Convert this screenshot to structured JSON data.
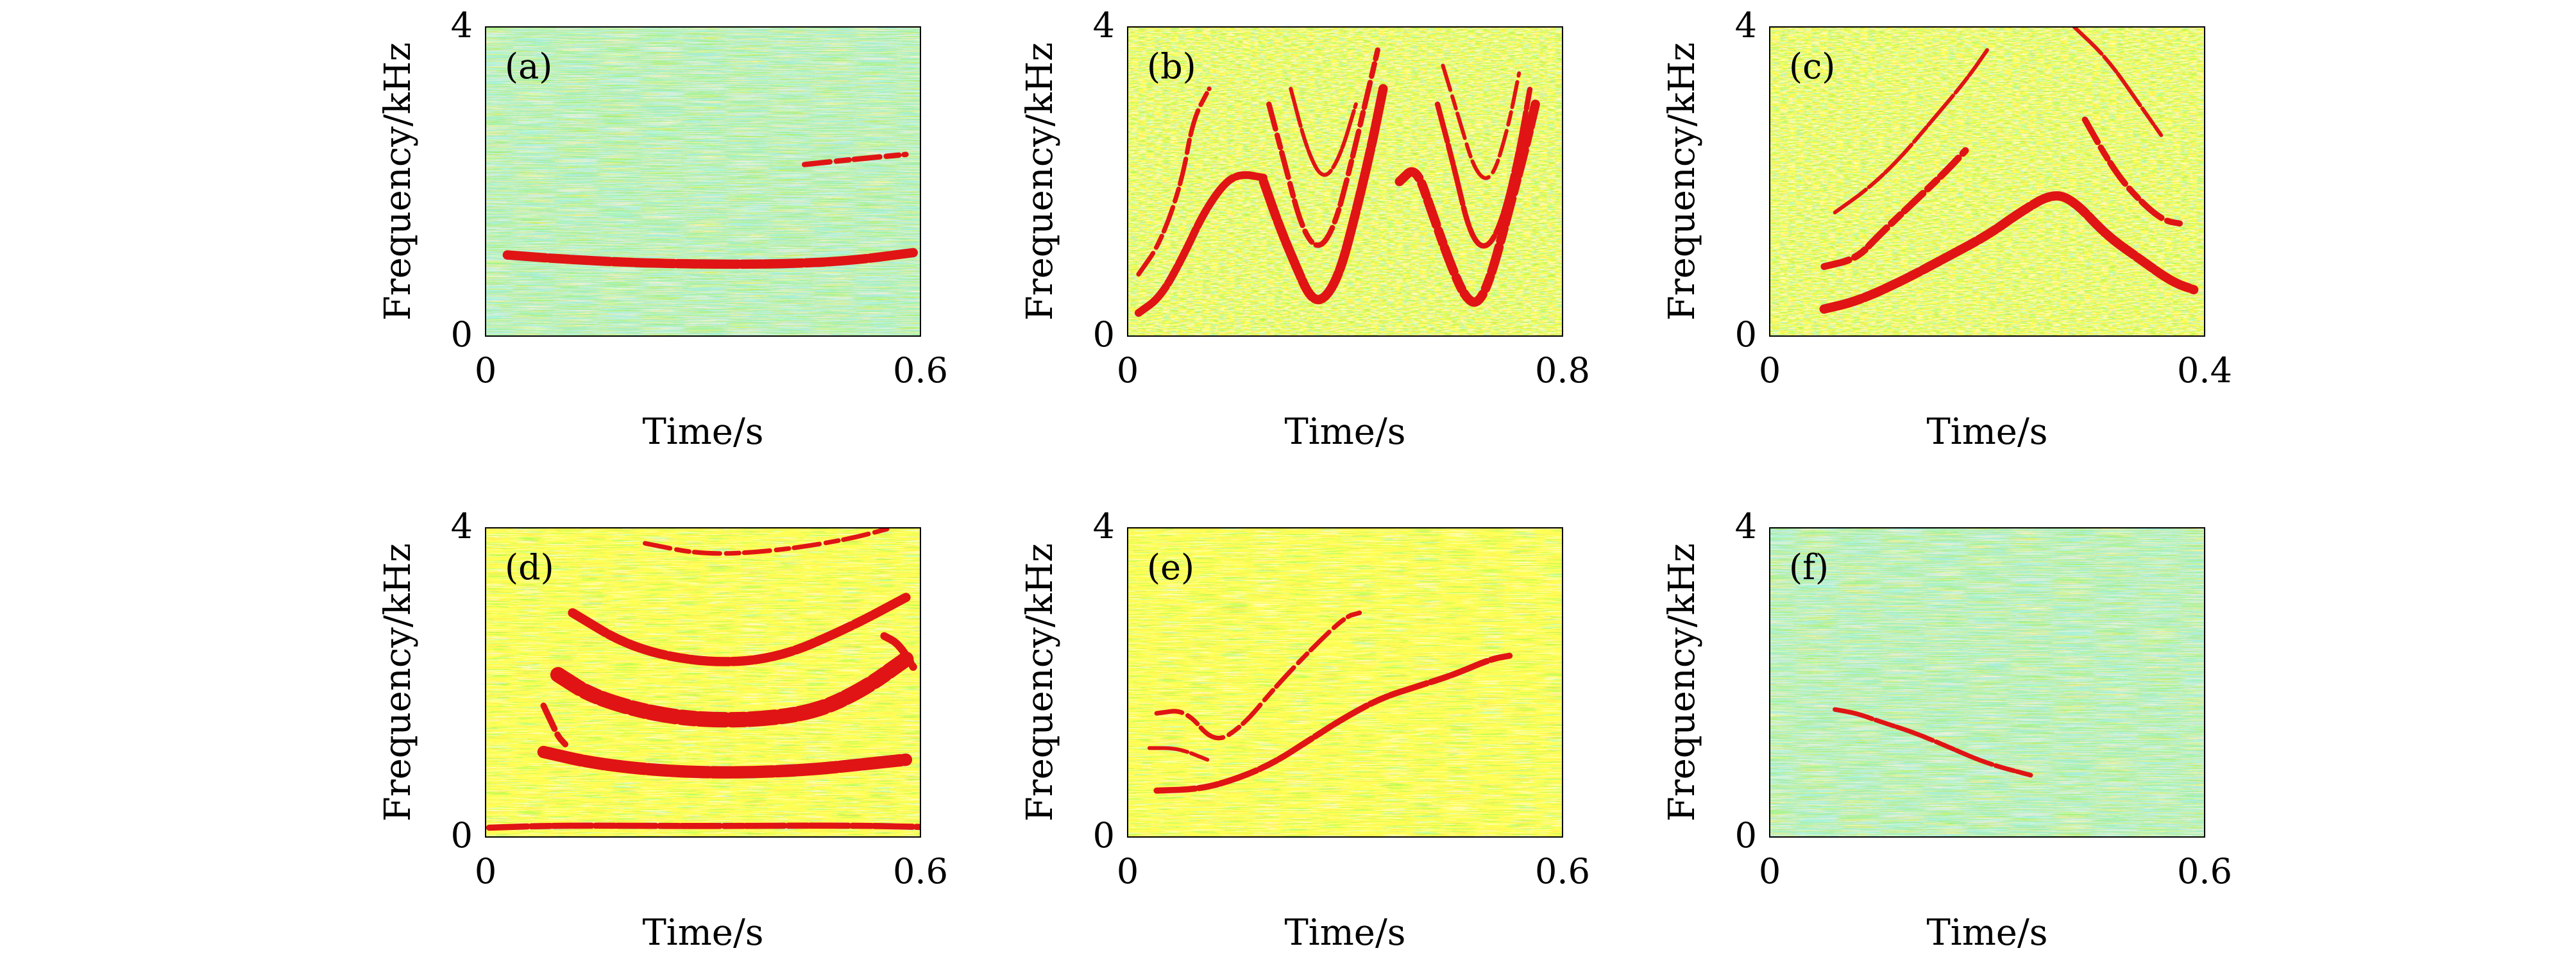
{
  "colors": {
    "background": "#ffff3c",
    "noise_cyan": "#5fd6cf",
    "noise_green": "#9fe36a",
    "noise_yellow": "#ffff00",
    "ridge": "#e01414",
    "frame": "#000000"
  },
  "chart_data": [
    {
      "id": "a",
      "type": "heatmap",
      "panel_label": "(a)",
      "xlabel": "Time/s",
      "ylabel": "Frequency/kHz",
      "xlim": [
        0,
        0.6
      ],
      "ylim": [
        0,
        4
      ],
      "x_ticks": [
        "0",
        "0.6"
      ],
      "y_ticks": [
        "0",
        "4"
      ],
      "ridges": [
        {
          "points": [
            [
              0.03,
              1.05
            ],
            [
              0.1,
              1.0
            ],
            [
              0.2,
              0.95
            ],
            [
              0.3,
              0.93
            ],
            [
              0.4,
              0.93
            ],
            [
              0.5,
              0.97
            ],
            [
              0.59,
              1.08
            ]
          ],
          "width": 0.12
        },
        {
          "points": [
            [
              0.44,
              2.22
            ],
            [
              0.5,
              2.28
            ],
            [
              0.58,
              2.35
            ]
          ],
          "width": 0.07
        }
      ]
    },
    {
      "id": "b",
      "type": "heatmap",
      "panel_label": "(b)",
      "xlabel": "Time/s",
      "ylabel": "Frequency/kHz",
      "xlim": [
        0,
        0.8
      ],
      "ylim": [
        0,
        4
      ],
      "x_ticks": [
        "0",
        "0.8"
      ],
      "y_ticks": [
        "0",
        "4"
      ],
      "ridges": [
        {
          "points": [
            [
              0.02,
              0.3
            ],
            [
              0.06,
              0.5
            ],
            [
              0.1,
              1.0
            ],
            [
              0.14,
              1.6
            ],
            [
              0.18,
              2.0
            ],
            [
              0.21,
              2.1
            ],
            [
              0.25,
              2.05
            ]
          ],
          "width": 0.1
        },
        {
          "points": [
            [
              0.02,
              0.8
            ],
            [
              0.06,
              1.2
            ],
            [
              0.1,
              2.0
            ],
            [
              0.12,
              2.8
            ],
            [
              0.15,
              3.2
            ]
          ],
          "width": 0.06
        },
        {
          "points": [
            [
              0.25,
              2.0
            ],
            [
              0.28,
              1.4
            ],
            [
              0.31,
              0.9
            ],
            [
              0.335,
              0.5
            ],
            [
              0.36,
              0.45
            ],
            [
              0.39,
              0.8
            ],
            [
              0.42,
              1.6
            ],
            [
              0.45,
              2.5
            ],
            [
              0.47,
              3.2
            ]
          ],
          "width": 0.12
        },
        {
          "points": [
            [
              0.26,
              3.0
            ],
            [
              0.29,
              2.2
            ],
            [
              0.32,
              1.4
            ],
            [
              0.35,
              1.1
            ],
            [
              0.38,
              1.4
            ],
            [
              0.41,
              2.2
            ],
            [
              0.44,
              3.1
            ],
            [
              0.46,
              3.7
            ]
          ],
          "width": 0.07
        },
        {
          "points": [
            [
              0.3,
              3.2
            ],
            [
              0.33,
              2.4
            ],
            [
              0.36,
              2.0
            ],
            [
              0.39,
              2.3
            ],
            [
              0.42,
              3.0
            ]
          ],
          "width": 0.05
        },
        {
          "points": [
            [
              0.5,
              2.0
            ],
            [
              0.53,
              2.2
            ],
            [
              0.56,
              1.6
            ],
            [
              0.59,
              1.0
            ],
            [
              0.62,
              0.5
            ],
            [
              0.645,
              0.4
            ],
            [
              0.67,
              0.8
            ],
            [
              0.7,
              1.6
            ],
            [
              0.73,
              2.4
            ],
            [
              0.75,
              3.0
            ]
          ],
          "width": 0.12
        },
        {
          "points": [
            [
              0.57,
              3.0
            ],
            [
              0.6,
              2.2
            ],
            [
              0.63,
              1.3
            ],
            [
              0.66,
              1.1
            ],
            [
              0.69,
              1.5
            ],
            [
              0.72,
              2.4
            ],
            [
              0.74,
              3.2
            ]
          ],
          "width": 0.07
        },
        {
          "points": [
            [
              0.58,
              3.5
            ],
            [
              0.61,
              2.8
            ],
            [
              0.64,
              2.1
            ],
            [
              0.67,
              2.0
            ],
            [
              0.7,
              2.7
            ],
            [
              0.72,
              3.4
            ]
          ],
          "width": 0.05
        }
      ]
    },
    {
      "id": "c",
      "type": "heatmap",
      "panel_label": "(c)",
      "xlabel": "Time/s",
      "ylabel": "Frequency/kHz",
      "xlim": [
        0,
        0.4
      ],
      "ylim": [
        0,
        4
      ],
      "x_ticks": [
        "0",
        "0.4"
      ],
      "y_ticks": [
        "0",
        "4"
      ],
      "ridges": [
        {
          "points": [
            [
              0.05,
              0.35
            ],
            [
              0.08,
              0.45
            ],
            [
              0.12,
              0.7
            ],
            [
              0.16,
              1.0
            ],
            [
              0.2,
              1.3
            ],
            [
              0.23,
              1.6
            ],
            [
              0.26,
              1.85
            ],
            [
              0.28,
              1.75
            ],
            [
              0.31,
              1.3
            ],
            [
              0.34,
              1.0
            ],
            [
              0.37,
              0.7
            ],
            [
              0.39,
              0.6
            ]
          ],
          "width": 0.12
        },
        {
          "points": [
            [
              0.05,
              0.9
            ],
            [
              0.08,
              1.0
            ],
            [
              0.1,
              1.3
            ],
            [
              0.13,
              1.7
            ],
            [
              0.16,
              2.1
            ],
            [
              0.18,
              2.4
            ]
          ],
          "width": 0.09
        },
        {
          "points": [
            [
              0.06,
              1.6
            ],
            [
              0.09,
              1.9
            ],
            [
              0.12,
              2.3
            ],
            [
              0.15,
              2.8
            ],
            [
              0.18,
              3.3
            ],
            [
              0.2,
              3.7
            ]
          ],
          "width": 0.05
        },
        {
          "points": [
            [
              0.29,
              2.8
            ],
            [
              0.31,
              2.3
            ],
            [
              0.33,
              1.9
            ],
            [
              0.36,
              1.5
            ],
            [
              0.38,
              1.45
            ]
          ],
          "width": 0.08
        },
        {
          "points": [
            [
              0.28,
              4.0
            ],
            [
              0.31,
              3.6
            ],
            [
              0.34,
              3.0
            ],
            [
              0.36,
              2.6
            ]
          ],
          "width": 0.05
        }
      ]
    },
    {
      "id": "d",
      "type": "heatmap",
      "panel_label": "(d)",
      "xlabel": "Time/s",
      "ylabel": "Frequency/kHz",
      "xlim": [
        0,
        0.6
      ],
      "ylim": [
        0,
        4
      ],
      "x_ticks": [
        "0",
        "0.6"
      ],
      "y_ticks": [
        "0",
        "4"
      ],
      "ridges": [
        {
          "points": [
            [
              0.08,
              1.1
            ],
            [
              0.15,
              0.95
            ],
            [
              0.25,
              0.85
            ],
            [
              0.35,
              0.83
            ],
            [
              0.45,
              0.87
            ],
            [
              0.53,
              0.95
            ],
            [
              0.58,
              1.0
            ]
          ],
          "width": 0.16
        },
        {
          "points": [
            [
              0.1,
              2.1
            ],
            [
              0.15,
              1.8
            ],
            [
              0.25,
              1.55
            ],
            [
              0.35,
              1.5
            ],
            [
              0.45,
              1.6
            ],
            [
              0.52,
              1.9
            ],
            [
              0.58,
              2.3
            ]
          ],
          "width": 0.2
        },
        {
          "points": [
            [
              0.12,
              2.9
            ],
            [
              0.2,
              2.45
            ],
            [
              0.3,
              2.25
            ],
            [
              0.4,
              2.3
            ],
            [
              0.5,
              2.7
            ],
            [
              0.58,
              3.1
            ]
          ],
          "width": 0.12
        },
        {
          "points": [
            [
              0.22,
              3.8
            ],
            [
              0.3,
              3.65
            ],
            [
              0.4,
              3.7
            ],
            [
              0.5,
              3.85
            ],
            [
              0.56,
              4.0
            ]
          ],
          "width": 0.06
        },
        {
          "points": [
            [
              0.005,
              0.12
            ],
            [
              0.1,
              0.15
            ],
            [
              0.3,
              0.14
            ],
            [
              0.5,
              0.15
            ],
            [
              0.6,
              0.13
            ]
          ],
          "width": 0.08
        },
        {
          "points": [
            [
              0.08,
              1.7
            ],
            [
              0.09,
              1.5
            ],
            [
              0.1,
              1.3
            ],
            [
              0.11,
              1.2
            ]
          ],
          "width": 0.08
        },
        {
          "points": [
            [
              0.55,
              2.6
            ],
            [
              0.57,
              2.5
            ],
            [
              0.59,
              2.2
            ]
          ],
          "width": 0.1
        }
      ]
    },
    {
      "id": "e",
      "type": "heatmap",
      "panel_label": "(e)",
      "xlabel": "Time/s",
      "ylabel": "Frequency/kHz",
      "xlim": [
        0,
        0.6
      ],
      "ylim": [
        0,
        4
      ],
      "x_ticks": [
        "0",
        "0.6"
      ],
      "y_ticks": [
        "0",
        "4"
      ],
      "ridges": [
        {
          "points": [
            [
              0.04,
              0.6
            ],
            [
              0.1,
              0.62
            ],
            [
              0.15,
              0.75
            ],
            [
              0.2,
              0.95
            ],
            [
              0.25,
              1.25
            ],
            [
              0.3,
              1.55
            ],
            [
              0.35,
              1.8
            ],
            [
              0.4,
              1.95
            ],
            [
              0.45,
              2.1
            ],
            [
              0.5,
              2.3
            ],
            [
              0.53,
              2.35
            ]
          ],
          "width": 0.08
        },
        {
          "points": [
            [
              0.04,
              1.6
            ],
            [
              0.08,
              1.65
            ],
            [
              0.12,
              1.2
            ],
            [
              0.16,
              1.45
            ],
            [
              0.2,
              1.9
            ],
            [
              0.25,
              2.4
            ],
            [
              0.3,
              2.85
            ],
            [
              0.32,
              2.9
            ]
          ],
          "width": 0.06
        },
        {
          "points": [
            [
              0.03,
              1.15
            ],
            [
              0.07,
              1.15
            ],
            [
              0.11,
              1.0
            ]
          ],
          "width": 0.05
        }
      ]
    },
    {
      "id": "f",
      "type": "heatmap",
      "panel_label": "(f)",
      "xlabel": "Time/s",
      "ylabel": "Frequency/kHz",
      "xlim": [
        0,
        0.6
      ],
      "ylim": [
        0,
        4
      ],
      "x_ticks": [
        "0",
        "0.6"
      ],
      "y_ticks": [
        "0",
        "4"
      ],
      "ridges": [
        {
          "points": [
            [
              0.09,
              1.65
            ],
            [
              0.12,
              1.6
            ],
            [
              0.15,
              1.5
            ],
            [
              0.2,
              1.35
            ],
            [
              0.25,
              1.15
            ],
            [
              0.3,
              0.95
            ],
            [
              0.36,
              0.8
            ]
          ],
          "width": 0.06
        }
      ]
    }
  ]
}
